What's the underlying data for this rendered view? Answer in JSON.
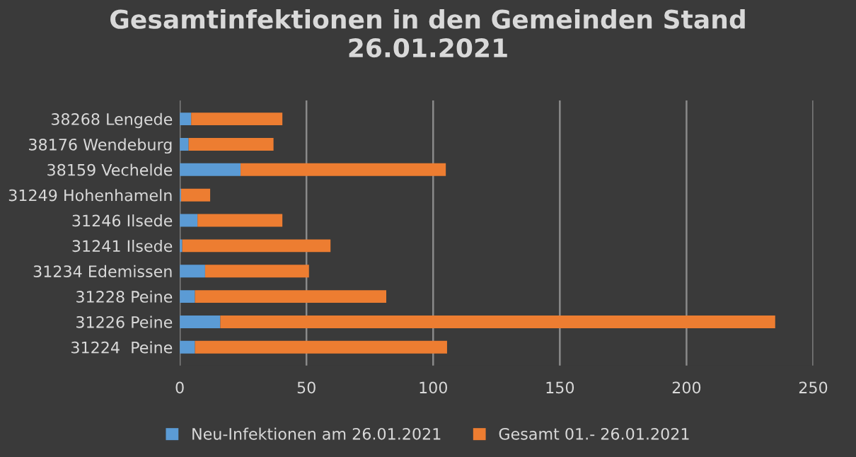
{
  "chart_data": {
    "type": "bar",
    "orientation": "horizontal",
    "stacked": true,
    "title": "Gesamtinfektionen in den Gemeinden Stand\n26.01.2021",
    "categories": [
      "38268 Lengede",
      "38176 Wendeburg",
      "38159 Vechelde",
      "31249 Hohenhameln",
      "31246 Ilsede",
      "31241 Ilsede",
      "31234 Edemissen",
      "31228 Peine",
      "31226 Peine",
      "31224  Peine"
    ],
    "series": [
      {
        "name": "Neu-Infektionen am 26.01.2021",
        "color": "#5b9bd5",
        "values": [
          4.5,
          3.5,
          24,
          0.5,
          7,
          1,
          10,
          6,
          16,
          6
        ]
      },
      {
        "name": "Gesamt 01.- 26.01.2021",
        "color": "#ed7d31",
        "values": [
          36,
          33.5,
          81,
          11.5,
          33.5,
          58.5,
          41,
          75.5,
          219,
          99.5
        ]
      }
    ],
    "xlim": [
      0,
      250
    ],
    "xticks": [
      0,
      50,
      100,
      150,
      200,
      250
    ],
    "grid": "x",
    "legend": "bottom"
  }
}
